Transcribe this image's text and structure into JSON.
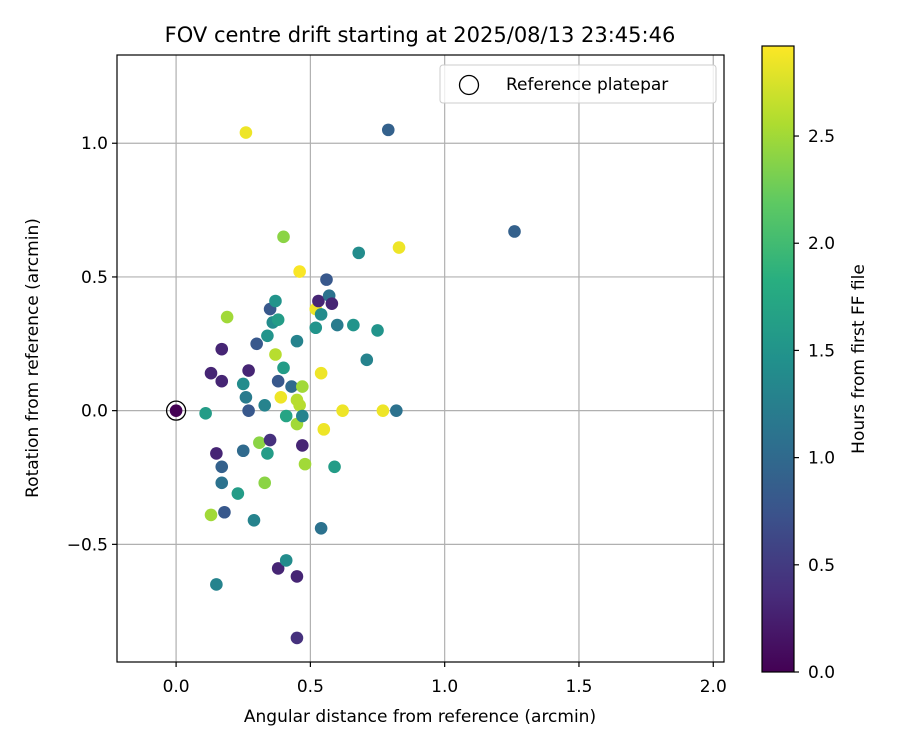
{
  "chart_data": {
    "type": "scatter",
    "title": "FOV centre drift starting at 2025/08/13 23:45:46",
    "xlabel": "Angular distance from reference (arcmin)",
    "ylabel": "Rotation from reference (arcmin)",
    "xlim": [
      -0.22,
      2.04
    ],
    "ylim": [
      -0.94,
      1.33
    ],
    "xticks": [
      0.0,
      0.5,
      1.0,
      1.5,
      2.0
    ],
    "xtick_labels": [
      "0.0",
      "0.5",
      "1.0",
      "1.5",
      "2.0"
    ],
    "yticks": [
      -0.5,
      0.0,
      0.5,
      1.0
    ],
    "ytick_labels": [
      "−0.5",
      "0.0",
      "0.5",
      "1.0"
    ],
    "grid": true,
    "legend": {
      "label": "Reference platepar",
      "placement": "upper right"
    },
    "reference_point": {
      "x": 0.0,
      "y": 0.0
    },
    "colorbar": {
      "label": "Hours from first FF file",
      "range": [
        0.0,
        2.92
      ],
      "ticks": [
        0.0,
        0.5,
        1.0,
        1.5,
        2.0,
        2.5
      ],
      "tick_labels": [
        "0.0",
        "0.5",
        "1.0",
        "1.5",
        "2.0",
        "2.5"
      ],
      "colormap": "viridis"
    },
    "points": [
      {
        "x": 0.0,
        "y": 0.0,
        "c": 0.0
      },
      {
        "x": 0.11,
        "y": -0.01,
        "c": 1.6
      },
      {
        "x": 0.13,
        "y": 0.14,
        "c": 0.3
      },
      {
        "x": 0.13,
        "y": -0.39,
        "c": 2.5
      },
      {
        "x": 0.15,
        "y": -0.16,
        "c": 0.3
      },
      {
        "x": 0.15,
        "y": -0.65,
        "c": 1.3
      },
      {
        "x": 0.17,
        "y": 0.23,
        "c": 0.3
      },
      {
        "x": 0.17,
        "y": 0.11,
        "c": 0.3
      },
      {
        "x": 0.17,
        "y": -0.21,
        "c": 0.9
      },
      {
        "x": 0.17,
        "y": -0.27,
        "c": 1.1
      },
      {
        "x": 0.18,
        "y": -0.38,
        "c": 0.8
      },
      {
        "x": 0.19,
        "y": 0.35,
        "c": 2.5
      },
      {
        "x": 0.23,
        "y": -0.31,
        "c": 1.6
      },
      {
        "x": 0.25,
        "y": 0.1,
        "c": 1.4
      },
      {
        "x": 0.25,
        "y": -0.15,
        "c": 1.0
      },
      {
        "x": 0.26,
        "y": 0.05,
        "c": 1.2
      },
      {
        "x": 0.26,
        "y": 1.04,
        "c": 2.85
      },
      {
        "x": 0.27,
        "y": 0.15,
        "c": 0.3
      },
      {
        "x": 0.27,
        "y": 0.0,
        "c": 0.8
      },
      {
        "x": 0.29,
        "y": -0.41,
        "c": 1.3
      },
      {
        "x": 0.3,
        "y": 0.25,
        "c": 0.8
      },
      {
        "x": 0.31,
        "y": -0.12,
        "c": 2.4
      },
      {
        "x": 0.33,
        "y": -0.27,
        "c": 2.4
      },
      {
        "x": 0.33,
        "y": 0.02,
        "c": 1.3
      },
      {
        "x": 0.34,
        "y": -0.16,
        "c": 1.6
      },
      {
        "x": 0.34,
        "y": 0.28,
        "c": 1.5
      },
      {
        "x": 0.35,
        "y": -0.11,
        "c": 0.4
      },
      {
        "x": 0.35,
        "y": 0.38,
        "c": 0.8
      },
      {
        "x": 0.36,
        "y": 0.33,
        "c": 1.4
      },
      {
        "x": 0.37,
        "y": 0.21,
        "c": 2.6
      },
      {
        "x": 0.37,
        "y": 0.41,
        "c": 1.5
      },
      {
        "x": 0.38,
        "y": 0.11,
        "c": 0.8
      },
      {
        "x": 0.38,
        "y": 0.34,
        "c": 1.6
      },
      {
        "x": 0.38,
        "y": -0.59,
        "c": 0.3
      },
      {
        "x": 0.39,
        "y": 0.05,
        "c": 2.85
      },
      {
        "x": 0.4,
        "y": 0.65,
        "c": 2.4
      },
      {
        "x": 0.4,
        "y": 0.16,
        "c": 1.6
      },
      {
        "x": 0.41,
        "y": -0.02,
        "c": 1.7
      },
      {
        "x": 0.41,
        "y": -0.56,
        "c": 1.4
      },
      {
        "x": 0.43,
        "y": 0.09,
        "c": 1.0
      },
      {
        "x": 0.45,
        "y": 0.26,
        "c": 1.3
      },
      {
        "x": 0.45,
        "y": -0.05,
        "c": 2.5
      },
      {
        "x": 0.45,
        "y": 0.04,
        "c": 2.6
      },
      {
        "x": 0.45,
        "y": -0.62,
        "c": 0.3
      },
      {
        "x": 0.45,
        "y": -0.85,
        "c": 0.4
      },
      {
        "x": 0.46,
        "y": 0.52,
        "c": 2.9
      },
      {
        "x": 0.46,
        "y": 0.02,
        "c": 2.6
      },
      {
        "x": 0.47,
        "y": -0.02,
        "c": 1.3
      },
      {
        "x": 0.47,
        "y": -0.13,
        "c": 0.3
      },
      {
        "x": 0.47,
        "y": 0.09,
        "c": 2.5
      },
      {
        "x": 0.48,
        "y": -0.2,
        "c": 2.5
      },
      {
        "x": 0.52,
        "y": 0.31,
        "c": 1.5
      },
      {
        "x": 0.52,
        "y": 0.38,
        "c": 2.85
      },
      {
        "x": 0.53,
        "y": 0.41,
        "c": 0.3
      },
      {
        "x": 0.54,
        "y": 0.36,
        "c": 1.4
      },
      {
        "x": 0.54,
        "y": 0.14,
        "c": 2.85
      },
      {
        "x": 0.54,
        "y": -0.44,
        "c": 1.1
      },
      {
        "x": 0.55,
        "y": -0.07,
        "c": 2.85
      },
      {
        "x": 0.56,
        "y": 0.49,
        "c": 0.8
      },
      {
        "x": 0.57,
        "y": 0.43,
        "c": 1.1
      },
      {
        "x": 0.58,
        "y": 0.4,
        "c": 0.3
      },
      {
        "x": 0.59,
        "y": -0.21,
        "c": 1.6
      },
      {
        "x": 0.6,
        "y": 0.32,
        "c": 1.2
      },
      {
        "x": 0.62,
        "y": 0.0,
        "c": 2.85
      },
      {
        "x": 0.66,
        "y": 0.32,
        "c": 1.5
      },
      {
        "x": 0.68,
        "y": 0.59,
        "c": 1.4
      },
      {
        "x": 0.71,
        "y": 0.19,
        "c": 1.3
      },
      {
        "x": 0.75,
        "y": 0.3,
        "c": 1.5
      },
      {
        "x": 0.77,
        "y": 0.0,
        "c": 2.85
      },
      {
        "x": 0.79,
        "y": 1.05,
        "c": 0.9
      },
      {
        "x": 0.82,
        "y": 0.0,
        "c": 1.1
      },
      {
        "x": 0.83,
        "y": 0.61,
        "c": 2.85
      },
      {
        "x": 1.26,
        "y": 0.67,
        "c": 0.9
      }
    ]
  }
}
